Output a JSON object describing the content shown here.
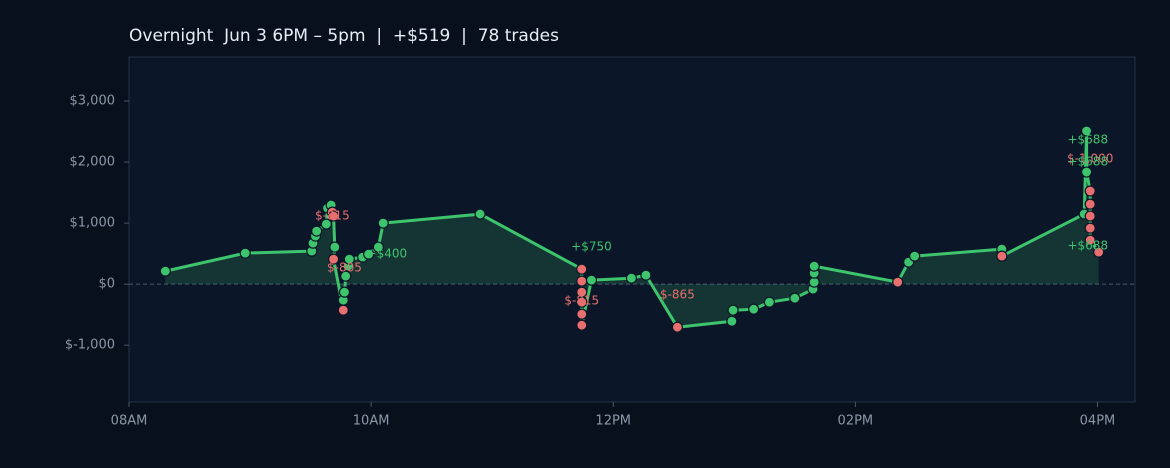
{
  "chart_data": {
    "type": "line",
    "title": "Overnight  Jun 3 6PM – 5pm  |  +$519  |  78 trades",
    "x": [
      8.3,
      8.96,
      9.51,
      9.52,
      9.54,
      9.55,
      9.63,
      9.64,
      9.67,
      9.68,
      9.69,
      9.7,
      9.69,
      9.77,
      9.77,
      9.78,
      9.79,
      9.81,
      9.82,
      9.93,
      9.98,
      10.06,
      10.1,
      10.9,
      11.74,
      11.74,
      11.74,
      11.74,
      11.74,
      11.74,
      11.82,
      12.15,
      12.27,
      12.53,
      12.98,
      12.99,
      13.16,
      13.29,
      13.5,
      13.65,
      13.66,
      13.66,
      13.66,
      14.35,
      14.44,
      14.49,
      15.21,
      15.21,
      15.89,
      15.91,
      15.91,
      15.94,
      15.94,
      15.94,
      15.94,
      15.94,
      16.01
    ],
    "values": [
      213,
      508,
      541,
      672,
      787,
      869,
      984,
      1246,
      1295,
      1180,
      1115,
      607,
      410,
      -426,
      -262,
      -131,
      131,
      295,
      410,
      443,
      492,
      607,
      1000,
      1148,
      246,
      49,
      -131,
      -295,
      -492,
      -672,
      66,
      98,
      148,
      -705,
      -607,
      -426,
      -410,
      -295,
      -230,
      -82,
      33,
      180,
      295,
      33,
      361,
      459,
      574,
      459,
      1148,
      2508,
      1836,
      1525,
      1311,
      1115,
      918,
      721,
      525
    ],
    "point_colors": [
      "#3ec46d",
      "#3ec46d",
      "#3ec46d",
      "#3ec46d",
      "#3ec46d",
      "#3ec46d",
      "#3ec46d",
      "#3ec46d",
      "#3ec46d",
      "#e86f6f",
      "#e86f6f",
      "#3ec46d",
      "#e86f6f",
      "#e86f6f",
      "#3ec46d",
      "#3ec46d",
      "#3ec46d",
      "#3ec46d",
      "#3ec46d",
      "#3ec46d",
      "#3ec46d",
      "#3ec46d",
      "#3ec46d",
      "#3ec46d",
      "#e86f6f",
      "#e86f6f",
      "#e86f6f",
      "#e86f6f",
      "#e86f6f",
      "#e86f6f",
      "#3ec46d",
      "#3ec46d",
      "#3ec46d",
      "#e86f6f",
      "#3ec46d",
      "#3ec46d",
      "#3ec46d",
      "#3ec46d",
      "#3ec46d",
      "#3ec46d",
      "#3ec46d",
      "#3ec46d",
      "#3ec46d",
      "#e86f6f",
      "#3ec46d",
      "#3ec46d",
      "#3ec46d",
      "#e86f6f",
      "#3ec46d",
      "#3ec46d",
      "#3ec46d",
      "#e86f6f",
      "#e86f6f",
      "#e86f6f",
      "#e86f6f",
      "#e86f6f",
      "#e86f6f"
    ],
    "color": "#3ec46d",
    "area": true,
    "zero_line": true,
    "xlim": [
      8,
      16.31
    ],
    "xticks": [
      {
        "value": 8,
        "label": "08AM"
      },
      {
        "value": 10,
        "label": "10AM"
      },
      {
        "value": 12,
        "label": "12PM"
      },
      {
        "value": 14,
        "label": "02PM"
      },
      {
        "value": 16,
        "label": "04PM"
      }
    ],
    "ylim": [
      -1930,
      3720
    ],
    "yticks": [
      {
        "value": 3000,
        "label": "$3,000"
      },
      {
        "value": 2000,
        "label": "$2,000"
      },
      {
        "value": 1000,
        "label": "$1,000"
      },
      {
        "value": 0,
        "label": "$0"
      },
      {
        "value": -1000,
        "label": "$-1,000"
      }
    ],
    "annotations": [
      {
        "text": "$-815",
        "x": 9.68,
        "y": 1115,
        "color": "#e86f6f"
      },
      {
        "text": "$-805",
        "x": 9.78,
        "y": 262,
        "color": "#e86f6f"
      },
      {
        "text": "+$400",
        "x": 10.13,
        "y": 492,
        "color": "#3ec46d"
      },
      {
        "text": "+$750",
        "x": 11.82,
        "y": 607,
        "color": "#3ec46d"
      },
      {
        "text": "$-815",
        "x": 11.74,
        "y": -279,
        "color": "#e86f6f"
      },
      {
        "text": "$-865",
        "x": 12.53,
        "y": -180,
        "color": "#e86f6f"
      },
      {
        "text": "+$688",
        "x": 15.92,
        "y": 2361,
        "color": "#3ec46d"
      },
      {
        "text": "$-1,000",
        "x": 15.94,
        "y": 2049,
        "color": "#e86f6f"
      },
      {
        "text": "+$688",
        "x": 15.92,
        "y": 2000,
        "color": "#3ec46d"
      },
      {
        "text": "+$688",
        "x": 15.92,
        "y": 623,
        "color": "#3ec46d"
      }
    ]
  }
}
